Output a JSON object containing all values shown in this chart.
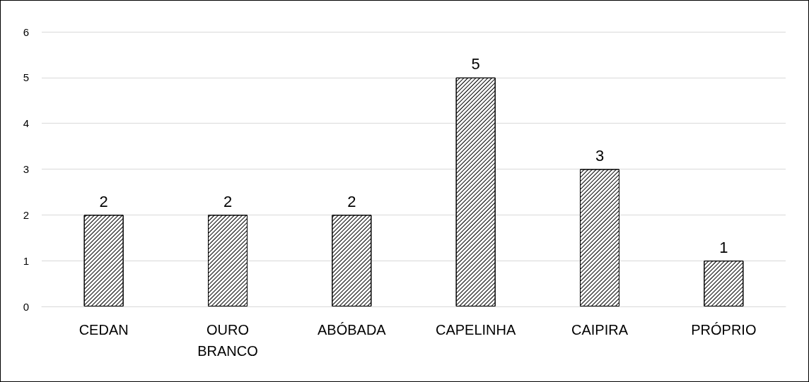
{
  "chart_data": {
    "type": "bar",
    "categories": [
      "CEDAN",
      "OURO\nBRANCO",
      "ABÓBADA",
      "CAPELINHA",
      "CAIPIRA",
      "PRÓPRIO"
    ],
    "values": [
      2,
      2,
      2,
      5,
      3,
      1
    ],
    "color": "#000000",
    "ylim": [
      0,
      6
    ],
    "yticks": [
      0,
      1,
      2,
      3,
      4,
      5,
      6
    ],
    "grid": "y",
    "data_labels": true
  }
}
